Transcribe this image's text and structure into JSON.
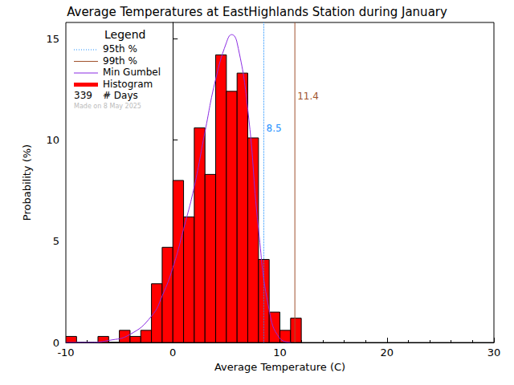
{
  "chart_data": {
    "type": "histogram",
    "title": "Average Temperatures at EastHighlands Station during January",
    "x_label": "Average Temperature (C)",
    "y_label": "Probability (%)",
    "xlim": [
      -10,
      30
    ],
    "xticks": [
      -10,
      0,
      10,
      20,
      30
    ],
    "ylim": [
      0,
      15.8
    ],
    "yticks": [
      0,
      5,
      10,
      15
    ],
    "legend": "upper left",
    "legend_title": "Legend",
    "days": 339,
    "days_label": "# Days",
    "note": "Made on 8 May 2025",
    "histogram": {
      "name": "Histogram",
      "color": "#ff0000",
      "bins": [
        -10,
        -9,
        -8,
        -7,
        -6,
        -5,
        -4,
        -3,
        -2,
        -1,
        0,
        1,
        2,
        3,
        4,
        5,
        6,
        7,
        8,
        9,
        10,
        11,
        12
      ],
      "values": [
        0.3,
        0,
        0,
        0.3,
        0,
        0.6,
        0.3,
        0.6,
        2.9,
        4.7,
        8.0,
        6.2,
        10.6,
        8.3,
        14.2,
        12.4,
        13.3,
        10.1,
        4.1,
        1.5,
        0.6,
        1.2
      ]
    },
    "gumbel": {
      "name": "Min Gumbel",
      "color": "#8a2be2",
      "x": [
        -10,
        -8,
        -6,
        -4,
        -2,
        -1,
        0,
        1,
        2,
        3,
        4,
        5,
        5.5,
        6,
        7,
        8,
        9,
        10,
        11
      ],
      "values": [
        0.0,
        0.0,
        0.1,
        0.4,
        1.3,
        2.3,
        3.7,
        5.6,
        7.7,
        10.4,
        13.0,
        14.8,
        15.2,
        14.8,
        11.5,
        5.6,
        1.6,
        0.2,
        0.0
      ]
    },
    "lines": [
      {
        "name": "95th %",
        "x": 8.5,
        "color": "#1e90ff",
        "line_style": "dotted"
      },
      {
        "name": "99th %",
        "x": 11.4,
        "color": "#a0522d",
        "line_style": "solid"
      }
    ]
  }
}
